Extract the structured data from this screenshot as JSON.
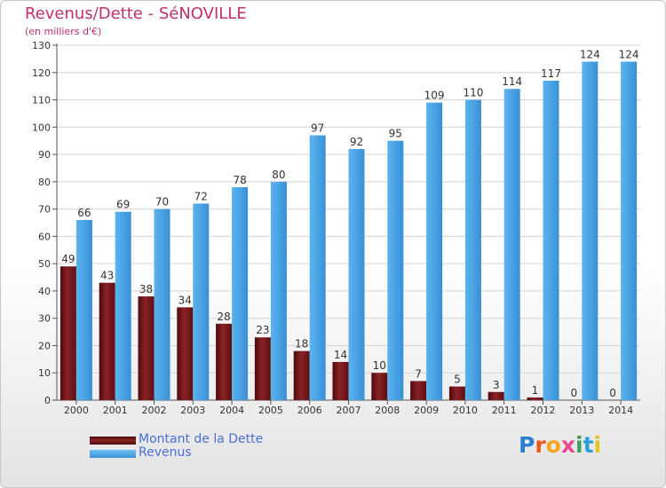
{
  "chart_data": {
    "type": "bar",
    "title": "Revenus/Dette - SéNOVILLE",
    "subtitle": "(en milliers d'€)",
    "categories": [
      "2000",
      "2001",
      "2002",
      "2003",
      "2004",
      "2005",
      "2006",
      "2007",
      "2008",
      "2009",
      "2010",
      "2011",
      "2012",
      "2013",
      "2014"
    ],
    "series": [
      {
        "name": "Montant de la Dette",
        "color": "#7a1a1c",
        "values": [
          49,
          43,
          38,
          34,
          28,
          23,
          18,
          14,
          10,
          7,
          5,
          3,
          1,
          0,
          0
        ]
      },
      {
        "name": "Revenus",
        "color": "#4aa3e4",
        "values": [
          66,
          69,
          70,
          72,
          78,
          80,
          97,
          92,
          95,
          109,
          110,
          114,
          117,
          124,
          124
        ]
      }
    ],
    "ylim": [
      0,
      130
    ],
    "yticks": [
      0,
      10,
      20,
      30,
      40,
      50,
      60,
      70,
      80,
      90,
      100,
      110,
      120,
      130
    ],
    "grid": true,
    "legend_position": "bottom-left"
  },
  "logo": {
    "text": "Proxiti",
    "colors": [
      "#2a7fd0",
      "#e85b1c",
      "#f3a51c",
      "#e84a8c",
      "#3aa05a",
      "#2a9fd8",
      "#e8c41c"
    ]
  }
}
